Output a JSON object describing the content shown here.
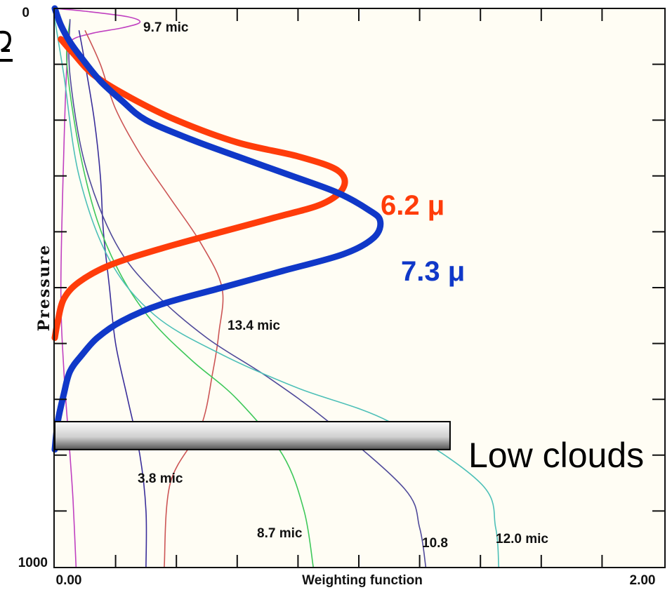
{
  "colors": {
    "background": "#fffdf4",
    "frame": "#111111",
    "ch_6_2": "#ff3c0a",
    "ch_7_3": "#1038c8",
    "ch_9_7": "#c040c0",
    "ch_13_4": "#cc5555",
    "ch_3_8": "#3a2e9a",
    "ch_8_7": "#3ec85a",
    "ch_10_8": "#504a9a",
    "ch_12_0": "#4ec0b8",
    "cloud_bar_top": "#fafafa",
    "cloud_bar_mid": "#d0d0d0",
    "cloud_bar_bottom": "#555555"
  },
  "chart_data": {
    "type": "line",
    "xlabel": "Weighting function",
    "ylabel": "Pressure",
    "xlim": [
      0.0,
      2.0
    ],
    "ylim": [
      1000,
      0
    ],
    "x_tick_labels": [
      "0.00",
      "2.00"
    ],
    "y_tick_labels": [
      "0",
      "1000"
    ],
    "grid": false,
    "series": [
      {
        "name": "6.2 μ",
        "key": "ch_6_2",
        "emphasis": true,
        "points": [
          [
            0.02,
            55
          ],
          [
            0.06,
            80
          ],
          [
            0.13,
            120
          ],
          [
            0.25,
            160
          ],
          [
            0.4,
            200
          ],
          [
            0.6,
            240
          ],
          [
            0.8,
            265
          ],
          [
            0.93,
            290
          ],
          [
            0.95,
            320
          ],
          [
            0.88,
            350
          ],
          [
            0.72,
            375
          ],
          [
            0.55,
            400
          ],
          [
            0.35,
            430
          ],
          [
            0.18,
            460
          ],
          [
            0.08,
            490
          ],
          [
            0.03,
            520
          ],
          [
            0.01,
            560
          ],
          [
            0.0,
            590
          ]
        ]
      },
      {
        "name": "7.3 μ",
        "key": "ch_7_3",
        "emphasis": true,
        "points": [
          [
            0.0,
            0
          ],
          [
            0.02,
            30
          ],
          [
            0.05,
            60
          ],
          [
            0.09,
            90
          ],
          [
            0.15,
            130
          ],
          [
            0.22,
            165
          ],
          [
            0.3,
            200
          ],
          [
            0.45,
            235
          ],
          [
            0.6,
            265
          ],
          [
            0.78,
            300
          ],
          [
            0.93,
            330
          ],
          [
            1.03,
            360
          ],
          [
            1.07,
            380
          ],
          [
            1.05,
            410
          ],
          [
            0.95,
            440
          ],
          [
            0.75,
            470
          ],
          [
            0.55,
            500
          ],
          [
            0.35,
            530
          ],
          [
            0.22,
            560
          ],
          [
            0.14,
            590
          ],
          [
            0.09,
            620
          ],
          [
            0.05,
            650
          ],
          [
            0.03,
            690
          ],
          [
            0.01,
            740
          ],
          [
            0.0,
            790
          ]
        ]
      },
      {
        "name": "9.7 mic",
        "key": "ch_9_7",
        "points": [
          [
            0.0,
            0
          ],
          [
            0.1,
            5
          ],
          [
            0.24,
            15
          ],
          [
            0.28,
            25
          ],
          [
            0.22,
            35
          ],
          [
            0.12,
            45
          ],
          [
            0.05,
            60
          ],
          [
            0.04,
            100
          ],
          [
            0.03,
            250
          ],
          [
            0.02,
            500
          ],
          [
            0.03,
            650
          ],
          [
            0.05,
            800
          ],
          [
            0.06,
            880
          ],
          [
            0.07,
            1000
          ]
        ]
      },
      {
        "name": "13.4 mic",
        "key": "ch_13_4",
        "points": [
          [
            0.1,
            40
          ],
          [
            0.15,
            100
          ],
          [
            0.2,
            180
          ],
          [
            0.28,
            260
          ],
          [
            0.38,
            340
          ],
          [
            0.48,
            420
          ],
          [
            0.55,
            500
          ],
          [
            0.54,
            580
          ],
          [
            0.52,
            650
          ],
          [
            0.48,
            750
          ],
          [
            0.38,
            850
          ],
          [
            0.36,
            1000
          ]
        ]
      },
      {
        "name": "3.8 mic",
        "key": "ch_3_8",
        "points": [
          [
            0.08,
            40
          ],
          [
            0.1,
            100
          ],
          [
            0.13,
            200
          ],
          [
            0.15,
            300
          ],
          [
            0.16,
            400
          ],
          [
            0.18,
            500
          ],
          [
            0.2,
            600
          ],
          [
            0.24,
            700
          ],
          [
            0.28,
            800
          ],
          [
            0.3,
            900
          ],
          [
            0.3,
            1000
          ]
        ]
      },
      {
        "name": "8.7 mic",
        "key": "ch_8_7",
        "points": [
          [
            0.05,
            20
          ],
          [
            0.04,
            100
          ],
          [
            0.08,
            250
          ],
          [
            0.14,
            380
          ],
          [
            0.22,
            480
          ],
          [
            0.32,
            560
          ],
          [
            0.45,
            630
          ],
          [
            0.6,
            700
          ],
          [
            0.75,
            800
          ],
          [
            0.82,
            900
          ],
          [
            0.85,
            1000
          ]
        ]
      },
      {
        "name": "10.8",
        "key": "ch_10_8",
        "points": [
          [
            0.05,
            20
          ],
          [
            0.05,
            120
          ],
          [
            0.1,
            280
          ],
          [
            0.2,
            420
          ],
          [
            0.33,
            510
          ],
          [
            0.5,
            590
          ],
          [
            0.7,
            660
          ],
          [
            0.9,
            740
          ],
          [
            1.15,
            860
          ],
          [
            1.2,
            930
          ],
          [
            1.22,
            1000
          ]
        ]
      },
      {
        "name": "12.0 mic",
        "key": "ch_12_0",
        "points": [
          [
            0.0,
            20
          ],
          [
            0.03,
            120
          ],
          [
            0.08,
            300
          ],
          [
            0.18,
            450
          ],
          [
            0.33,
            550
          ],
          [
            0.55,
            620
          ],
          [
            0.8,
            680
          ],
          [
            1.1,
            740
          ],
          [
            1.4,
            850
          ],
          [
            1.45,
            930
          ],
          [
            1.46,
            1000
          ]
        ]
      }
    ],
    "annotations": [
      {
        "text": "9.7 mic",
        "key": "ch_9_7"
      },
      {
        "text": "13.4 mic",
        "key": "ch_13_4"
      },
      {
        "text": "3.8 mic",
        "key": "ch_3_8"
      },
      {
        "text": "8.7 mic",
        "key": "ch_8_7"
      },
      {
        "text": "10.8",
        "key": "ch_10_8"
      },
      {
        "text": "12.0 mic",
        "key": "ch_12_0"
      },
      {
        "text": "6.2 μ",
        "key": "ch_6_2"
      },
      {
        "text": "7.3 μ",
        "key": "ch_7_3"
      }
    ],
    "cloud_band": {
      "label": "Low clouds",
      "pressure_top": 740,
      "pressure_bottom": 790,
      "x_max": 1.3
    }
  }
}
